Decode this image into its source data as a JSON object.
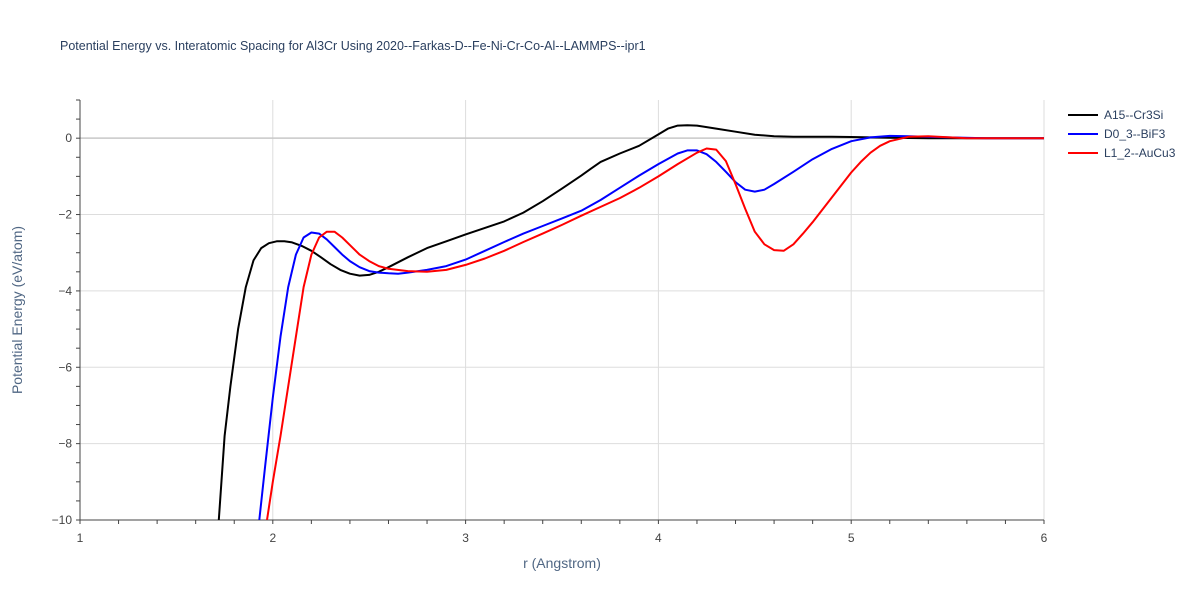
{
  "chart_data": {
    "type": "line",
    "title": "Potential Energy vs. Interatomic Spacing for Al3Cr Using 2020--Farkas-D--Fe-Ni-Cr-Co-Al--LAMMPS--ipr1",
    "xlabel": "r (Angstrom)",
    "ylabel": "Potential Energy (eV/atom)",
    "xlim": [
      1,
      6
    ],
    "ylim": [
      -10,
      1
    ],
    "xticks": [
      1,
      2,
      3,
      4,
      5,
      6
    ],
    "yticks": [
      -10,
      -8,
      -6,
      -4,
      -2,
      0
    ],
    "grid": true,
    "legend_position": "top-right",
    "series": [
      {
        "name": "A15--Cr3Si",
        "color": "#000000",
        "x": [
          1.72,
          1.75,
          1.78,
          1.82,
          1.86,
          1.9,
          1.94,
          1.98,
          2.02,
          2.06,
          2.1,
          2.15,
          2.2,
          2.25,
          2.3,
          2.35,
          2.4,
          2.45,
          2.5,
          2.55,
          2.6,
          2.7,
          2.8,
          2.9,
          3.0,
          3.1,
          3.2,
          3.3,
          3.4,
          3.5,
          3.6,
          3.65,
          3.7,
          3.8,
          3.9,
          4.0,
          4.05,
          4.1,
          4.15,
          4.2,
          4.3,
          4.4,
          4.5,
          4.6,
          4.7,
          4.8,
          4.9,
          5.0,
          5.1,
          5.2,
          5.4,
          5.6,
          5.8,
          6.0
        ],
        "y": [
          -10,
          -7.8,
          -6.5,
          -5.0,
          -3.9,
          -3.2,
          -2.88,
          -2.75,
          -2.7,
          -2.7,
          -2.73,
          -2.82,
          -2.95,
          -3.12,
          -3.3,
          -3.45,
          -3.55,
          -3.6,
          -3.58,
          -3.5,
          -3.38,
          -3.12,
          -2.88,
          -2.7,
          -2.52,
          -2.35,
          -2.18,
          -1.95,
          -1.65,
          -1.32,
          -0.98,
          -0.8,
          -0.62,
          -0.4,
          -0.2,
          0.1,
          0.25,
          0.33,
          0.34,
          0.33,
          0.25,
          0.17,
          0.09,
          0.05,
          0.04,
          0.04,
          0.04,
          0.03,
          0.02,
          0.01,
          0.0,
          0.0,
          0.0,
          0.0
        ]
      },
      {
        "name": "D0_3--BiF3",
        "color": "#0000ff",
        "x": [
          1.93,
          1.96,
          2.0,
          2.04,
          2.08,
          2.12,
          2.16,
          2.2,
          2.24,
          2.28,
          2.32,
          2.36,
          2.4,
          2.45,
          2.5,
          2.55,
          2.6,
          2.65,
          2.7,
          2.8,
          2.9,
          3.0,
          3.1,
          3.2,
          3.3,
          3.4,
          3.5,
          3.6,
          3.7,
          3.8,
          3.9,
          4.0,
          4.1,
          4.15,
          4.2,
          4.25,
          4.3,
          4.35,
          4.4,
          4.45,
          4.5,
          4.55,
          4.6,
          4.7,
          4.8,
          4.9,
          5.0,
          5.1,
          5.2,
          5.3,
          5.5,
          5.7,
          6.0
        ],
        "y": [
          -10,
          -8.6,
          -6.8,
          -5.2,
          -3.9,
          -3.05,
          -2.6,
          -2.47,
          -2.5,
          -2.65,
          -2.85,
          -3.05,
          -3.22,
          -3.38,
          -3.48,
          -3.52,
          -3.54,
          -3.55,
          -3.52,
          -3.45,
          -3.35,
          -3.18,
          -2.95,
          -2.72,
          -2.5,
          -2.3,
          -2.1,
          -1.9,
          -1.62,
          -1.3,
          -0.98,
          -0.68,
          -0.4,
          -0.32,
          -0.32,
          -0.42,
          -0.62,
          -0.88,
          -1.15,
          -1.35,
          -1.4,
          -1.35,
          -1.2,
          -0.88,
          -0.55,
          -0.28,
          -0.08,
          0.02,
          0.06,
          0.05,
          0.02,
          0.0,
          0.0
        ]
      },
      {
        "name": "L1_2--AuCu3",
        "color": "#ff0000",
        "x": [
          1.97,
          2.0,
          2.04,
          2.08,
          2.12,
          2.16,
          2.2,
          2.24,
          2.28,
          2.32,
          2.36,
          2.4,
          2.45,
          2.5,
          2.55,
          2.6,
          2.7,
          2.8,
          2.9,
          3.0,
          3.1,
          3.2,
          3.3,
          3.4,
          3.5,
          3.6,
          3.7,
          3.8,
          3.9,
          4.0,
          4.1,
          4.2,
          4.25,
          4.3,
          4.35,
          4.4,
          4.45,
          4.5,
          4.55,
          4.6,
          4.65,
          4.7,
          4.75,
          4.8,
          4.9,
          5.0,
          5.05,
          5.1,
          5.15,
          5.2,
          5.3,
          5.4,
          5.6,
          6.0
        ],
        "y": [
          -10,
          -9.0,
          -7.8,
          -6.5,
          -5.2,
          -3.9,
          -3.05,
          -2.6,
          -2.45,
          -2.45,
          -2.6,
          -2.8,
          -3.05,
          -3.22,
          -3.35,
          -3.42,
          -3.48,
          -3.5,
          -3.45,
          -3.32,
          -3.15,
          -2.95,
          -2.72,
          -2.5,
          -2.27,
          -2.03,
          -1.8,
          -1.57,
          -1.3,
          -1.0,
          -0.68,
          -0.38,
          -0.27,
          -0.3,
          -0.6,
          -1.2,
          -1.85,
          -2.45,
          -2.78,
          -2.93,
          -2.95,
          -2.78,
          -2.5,
          -2.2,
          -1.55,
          -0.9,
          -0.62,
          -0.38,
          -0.2,
          -0.08,
          0.04,
          0.05,
          0.0,
          0.0
        ]
      }
    ]
  }
}
